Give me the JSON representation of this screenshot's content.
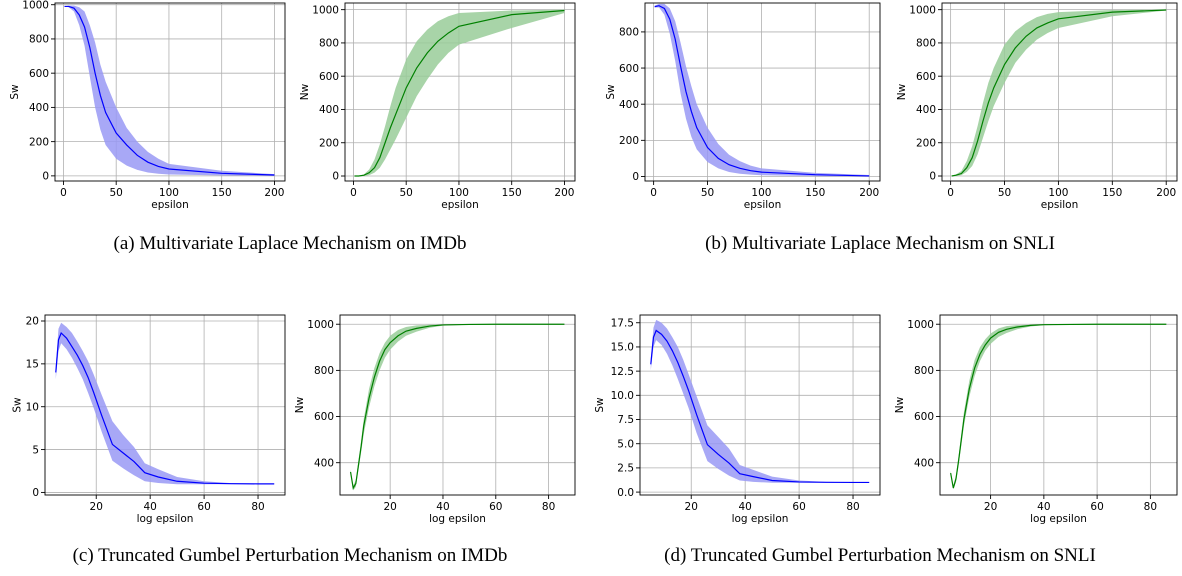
{
  "figure": {
    "captions": [
      "(a) Multivariate Laplace Mechanism on IMDb",
      "(b) Multivariate Laplace Mechanism on SNLI",
      "(c) Truncated Gumbel Perturbation Mechanism on IMDb",
      "(d) Truncated Gumbel Perturbation Mechanism on SNLI"
    ]
  },
  "colors": {
    "sw_line": "#0000ff",
    "sw_band": "#9999f5",
    "nw_line": "#008000",
    "nw_band": "#99cc99",
    "grid": "#b0b0b0",
    "axis": "#000000"
  },
  "chart_data": [
    {
      "type": "line",
      "panel": "a",
      "xlabel": "epsilon",
      "ylabel": "Sw",
      "xlim": [
        -8,
        210
      ],
      "ylim": [
        -30,
        1010
      ],
      "xticks": [
        0,
        50,
        100,
        150,
        200
      ],
      "yticks": [
        0,
        200,
        400,
        600,
        800,
        1000
      ],
      "grid": true,
      "series": [
        {
          "color": "blue",
          "x": [
            1,
            5,
            10,
            15,
            20,
            25,
            30,
            35,
            40,
            50,
            60,
            70,
            80,
            90,
            100,
            150,
            200
          ],
          "y": [
            990,
            990,
            980,
            940,
            870,
            750,
            600,
            470,
            370,
            250,
            180,
            120,
            80,
            55,
            40,
            15,
            5
          ],
          "lower": [
            990,
            985,
            960,
            880,
            760,
            580,
            400,
            270,
            180,
            100,
            60,
            35,
            20,
            12,
            8,
            3,
            1
          ],
          "upper": [
            990,
            995,
            995,
            985,
            960,
            880,
            780,
            650,
            550,
            400,
            280,
            200,
            140,
            100,
            70,
            30,
            10
          ]
        }
      ]
    },
    {
      "type": "line",
      "panel": "a",
      "xlabel": "epsilon",
      "ylabel": "Nw",
      "xlim": [
        -8,
        210
      ],
      "ylim": [
        -30,
        1040
      ],
      "xticks": [
        0,
        50,
        100,
        150,
        200
      ],
      "yticks": [
        0,
        200,
        400,
        600,
        800,
        1000
      ],
      "grid": true,
      "series": [
        {
          "color": "green",
          "x": [
            1,
            5,
            10,
            15,
            20,
            25,
            30,
            35,
            40,
            50,
            60,
            70,
            80,
            90,
            100,
            150,
            200
          ],
          "y": [
            0,
            0,
            5,
            20,
            50,
            110,
            200,
            290,
            370,
            530,
            650,
            740,
            810,
            860,
            900,
            970,
            995
          ],
          "lower": [
            0,
            0,
            0,
            5,
            20,
            50,
            100,
            160,
            220,
            350,
            480,
            580,
            670,
            740,
            790,
            890,
            980
          ],
          "upper": [
            0,
            0,
            10,
            40,
            100,
            190,
            300,
            420,
            530,
            700,
            810,
            880,
            930,
            960,
            980,
            995,
            1000
          ]
        }
      ]
    },
    {
      "type": "line",
      "panel": "b",
      "xlabel": "epsilon",
      "ylabel": "Sw",
      "xlim": [
        -8,
        210
      ],
      "ylim": [
        -25,
        960
      ],
      "xticks": [
        0,
        50,
        100,
        150,
        200
      ],
      "yticks": [
        0,
        200,
        400,
        600,
        800
      ],
      "grid": true,
      "series": [
        {
          "color": "blue",
          "x": [
            1,
            5,
            10,
            15,
            20,
            25,
            30,
            35,
            40,
            50,
            60,
            70,
            80,
            90,
            100,
            150,
            200
          ],
          "y": [
            940,
            945,
            930,
            870,
            760,
            610,
            470,
            360,
            270,
            160,
            100,
            65,
            45,
            32,
            24,
            10,
            3
          ],
          "lower": [
            935,
            935,
            895,
            790,
            640,
            460,
            320,
            220,
            150,
            80,
            45,
            25,
            15,
            10,
            7,
            2,
            1
          ],
          "upper": [
            945,
            955,
            955,
            930,
            860,
            740,
            610,
            500,
            400,
            270,
            180,
            120,
            85,
            60,
            45,
            20,
            8
          ]
        }
      ]
    },
    {
      "type": "line",
      "panel": "b",
      "xlabel": "epsilon",
      "ylabel": "Nw",
      "xlim": [
        -8,
        210
      ],
      "ylim": [
        -30,
        1040
      ],
      "xticks": [
        0,
        50,
        100,
        150,
        200
      ],
      "yticks": [
        0,
        200,
        400,
        600,
        800,
        1000
      ],
      "grid": true,
      "series": [
        {
          "color": "green",
          "x": [
            1,
            5,
            10,
            15,
            20,
            25,
            30,
            35,
            40,
            50,
            60,
            70,
            80,
            90,
            100,
            150,
            200
          ],
          "y": [
            0,
            5,
            15,
            50,
            110,
            210,
            330,
            440,
            530,
            670,
            770,
            840,
            890,
            920,
            945,
            985,
            998
          ],
          "lower": [
            0,
            0,
            5,
            25,
            60,
            130,
            230,
            330,
            420,
            560,
            680,
            760,
            820,
            860,
            890,
            960,
            995
          ],
          "upper": [
            0,
            10,
            30,
            90,
            180,
            300,
            440,
            560,
            650,
            790,
            870,
            920,
            955,
            975,
            985,
            998,
            1000
          ]
        }
      ]
    },
    {
      "type": "line",
      "panel": "c",
      "xlabel": "log epsilon",
      "ylabel": "Sw",
      "xlim": [
        1,
        90
      ],
      "ylim": [
        -0.3,
        20.7
      ],
      "xticks": [
        20,
        40,
        60,
        80
      ],
      "yticks": [
        0,
        5,
        10,
        15,
        20
      ],
      "grid": true,
      "series": [
        {
          "color": "blue",
          "x": [
            5,
            6,
            7,
            9,
            11,
            13,
            15,
            17,
            19,
            22,
            26,
            30,
            34,
            38,
            43,
            50,
            60,
            70,
            80,
            86
          ],
          "y": [
            14,
            17.8,
            18.6,
            18.0,
            17.0,
            16.0,
            14.8,
            13.4,
            11.7,
            9.0,
            5.6,
            4.6,
            3.6,
            2.3,
            1.8,
            1.3,
            1.08,
            1.02,
            1.0,
            1.0
          ],
          "lower": [
            13.2,
            16.5,
            17.4,
            16.7,
            15.7,
            14.5,
            13.2,
            11.6,
            9.9,
            7.1,
            3.7,
            2.8,
            2.0,
            1.3,
            1.1,
            0.95,
            0.95,
            0.97,
            0.98,
            0.98
          ],
          "upper": [
            14.8,
            19.1,
            19.8,
            19.3,
            18.6,
            17.6,
            16.5,
            15.3,
            13.8,
            11.4,
            8.3,
            6.7,
            5.3,
            3.4,
            2.7,
            1.8,
            1.3,
            1.08,
            1.03,
            1.02
          ]
        }
      ]
    },
    {
      "type": "line",
      "panel": "c",
      "xlabel": "log epsilon",
      "ylabel": "Nw",
      "xlim": [
        1,
        90
      ],
      "ylim": [
        260,
        1040
      ],
      "xticks": [
        20,
        40,
        60,
        80
      ],
      "yticks": [
        400,
        600,
        800,
        1000
      ],
      "grid": true,
      "series": [
        {
          "color": "green",
          "x": [
            5,
            6,
            7,
            8,
            9,
            10,
            12,
            14,
            16,
            18,
            20,
            23,
            26,
            30,
            35,
            40,
            50,
            60,
            70,
            86
          ],
          "y": [
            360,
            290,
            310,
            390,
            470,
            560,
            680,
            770,
            840,
            890,
            920,
            950,
            970,
            982,
            992,
            997,
            999,
            1000,
            1000,
            1000
          ],
          "lower": [
            350,
            280,
            295,
            370,
            445,
            525,
            640,
            730,
            800,
            855,
            890,
            925,
            950,
            968,
            985,
            994,
            998,
            999,
            1000,
            1000
          ],
          "upper": [
            370,
            300,
            325,
            410,
            495,
            590,
            720,
            810,
            875,
            920,
            950,
            975,
            988,
            995,
            998,
            999,
            1000,
            1000,
            1000,
            1000
          ]
        }
      ]
    },
    {
      "type": "line",
      "panel": "d",
      "xlabel": "log epsilon",
      "ylabel": "Sw",
      "xlim": [
        1,
        90
      ],
      "ylim": [
        -0.3,
        18.3
      ],
      "xticks": [
        20,
        40,
        60,
        80
      ],
      "yticks": [
        0.0,
        2.5,
        5.0,
        7.5,
        10.0,
        12.5,
        15.0,
        17.5
      ],
      "grid": true,
      "series": [
        {
          "color": "blue",
          "x": [
            5,
            6,
            7,
            9,
            11,
            13,
            15,
            17,
            19,
            22,
            26,
            30,
            34,
            38,
            43,
            50,
            60,
            70,
            80,
            86
          ],
          "y": [
            13.2,
            16.0,
            16.7,
            16.3,
            15.6,
            14.6,
            13.4,
            12.0,
            10.5,
            8.0,
            4.9,
            3.9,
            3.0,
            1.9,
            1.6,
            1.2,
            1.05,
            1.01,
            1.0,
            1.0
          ],
          "lower": [
            12.6,
            15.0,
            15.7,
            15.2,
            14.3,
            13.1,
            11.7,
            10.2,
            8.7,
            6.1,
            3.2,
            2.4,
            1.7,
            1.2,
            1.05,
            0.97,
            0.97,
            0.98,
            0.99,
            0.99
          ],
          "upper": [
            13.8,
            17.0,
            17.8,
            17.5,
            16.9,
            16.0,
            15.0,
            13.7,
            12.2,
            9.9,
            6.9,
            5.7,
            4.5,
            2.8,
            2.3,
            1.6,
            1.2,
            1.05,
            1.02,
            1.01
          ]
        }
      ]
    },
    {
      "type": "line",
      "panel": "d",
      "xlabel": "log epsilon",
      "ylabel": "Nw",
      "xlim": [
        1,
        90
      ],
      "ylim": [
        260,
        1040
      ],
      "xticks": [
        20,
        40,
        60,
        80
      ],
      "yticks": [
        400,
        600,
        800,
        1000
      ],
      "grid": true,
      "series": [
        {
          "color": "green",
          "x": [
            5,
            6,
            7,
            8,
            9,
            10,
            12,
            14,
            16,
            18,
            20,
            23,
            26,
            30,
            35,
            40,
            50,
            60,
            70,
            86
          ],
          "y": [
            355,
            290,
            330,
            410,
            500,
            590,
            720,
            810,
            870,
            910,
            940,
            965,
            978,
            988,
            995,
            998,
            999,
            1000,
            1000,
            1000
          ],
          "lower": [
            345,
            285,
            315,
            390,
            475,
            560,
            685,
            775,
            840,
            885,
            915,
            945,
            962,
            978,
            990,
            996,
            998,
            999,
            1000,
            1000
          ],
          "upper": [
            365,
            300,
            345,
            430,
            525,
            620,
            755,
            845,
            900,
            935,
            960,
            982,
            992,
            996,
            998,
            999,
            1000,
            1000,
            1000,
            1000
          ]
        }
      ]
    }
  ]
}
